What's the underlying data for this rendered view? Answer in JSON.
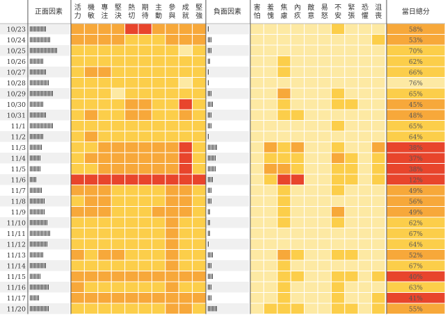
{
  "chart_data": {
    "type": "heatmap",
    "header": {
      "positive_title": "正面因素",
      "negative_title": "負面因素",
      "score_title": "當日總分"
    },
    "positive_labels": [
      "活力",
      "機敏",
      "專注",
      "堅決",
      "熱切",
      "期待",
      "主動",
      "參與",
      "成就",
      "堅強"
    ],
    "negative_labels": [
      "害怕",
      "羞愧",
      "焦慮",
      "內疚",
      "敵意",
      "易怒",
      "不安",
      "緊張",
      "恐懼",
      "沮喪"
    ],
    "dates": [
      "10/23",
      "10/24",
      "10/25",
      "10/26",
      "10/27",
      "10/28",
      "10/29",
      "10/30",
      "10/31",
      "11/1",
      "11/2",
      "11/3",
      "11/4",
      "11/5",
      "11/6",
      "11/7",
      "11/8",
      "11/9",
      "11/10",
      "11/11",
      "11/12",
      "11/13",
      "11/14",
      "11/15",
      "11/16",
      "11/17",
      "11/20"
    ],
    "positive_tally": [
      12,
      15,
      20,
      10,
      12,
      14,
      17,
      10,
      12,
      17,
      10,
      9,
      8,
      8,
      5,
      9,
      11,
      11,
      13,
      15,
      13,
      10,
      12,
      8,
      14,
      7,
      14
    ],
    "negative_tally": [
      1,
      3,
      3,
      2,
      1,
      1,
      3,
      4,
      3,
      3,
      1,
      7,
      6,
      6,
      4,
      3,
      3,
      2,
      2,
      2,
      1,
      4,
      3,
      4,
      3,
      3,
      7
    ],
    "scores": [
      "58%",
      "53%",
      "70%",
      "62%",
      "66%",
      "76%",
      "65%",
      "45%",
      "48%",
      "65%",
      "64%",
      "38%",
      "37%",
      "38%",
      "12%",
      "49%",
      "56%",
      "49%",
      "62%",
      "67%",
      "64%",
      "52%",
      "67%",
      "40%",
      "63%",
      "41%",
      "55%"
    ],
    "score_values": [
      58,
      53,
      70,
      62,
      66,
      76,
      65,
      45,
      48,
      65,
      64,
      38,
      37,
      38,
      12,
      49,
      56,
      49,
      62,
      67,
      64,
      52,
      67,
      40,
      63,
      41,
      55
    ],
    "positive_values": [
      [
        3,
        3,
        3,
        3,
        4,
        4,
        3,
        3,
        3,
        3
      ],
      [
        3,
        3,
        3,
        3,
        2,
        2,
        2,
        3,
        3,
        3
      ],
      [
        2,
        2,
        2,
        2,
        2,
        2,
        2,
        2,
        1,
        2
      ],
      [
        2,
        2,
        2,
        2,
        2,
        2,
        2,
        2,
        2,
        2
      ],
      [
        2,
        3,
        3,
        2,
        2,
        2,
        2,
        2,
        2,
        2
      ],
      [
        2,
        2,
        2,
        2,
        2,
        2,
        2,
        2,
        1,
        2
      ],
      [
        2,
        2,
        2,
        1,
        2,
        2,
        2,
        2,
        2,
        2
      ],
      [
        2,
        2,
        2,
        2,
        3,
        3,
        2,
        2,
        4,
        2
      ],
      [
        2,
        3,
        2,
        2,
        3,
        3,
        2,
        2,
        3,
        2
      ],
      [
        2,
        2,
        2,
        2,
        2,
        2,
        2,
        2,
        2,
        2
      ],
      [
        2,
        3,
        2,
        2,
        2,
        2,
        2,
        2,
        2,
        2
      ],
      [
        2,
        2,
        3,
        3,
        3,
        3,
        3,
        3,
        4,
        2
      ],
      [
        2,
        3,
        3,
        3,
        3,
        3,
        3,
        3,
        4,
        2
      ],
      [
        2,
        2,
        3,
        3,
        3,
        3,
        3,
        3,
        4,
        2
      ],
      [
        4,
        4,
        4,
        4,
        4,
        4,
        4,
        4,
        4,
        4
      ],
      [
        3,
        3,
        3,
        2,
        2,
        2,
        2,
        3,
        3,
        2
      ],
      [
        2,
        3,
        3,
        2,
        2,
        2,
        2,
        3,
        3,
        2
      ],
      [
        3,
        3,
        3,
        2,
        2,
        2,
        3,
        3,
        3,
        2
      ],
      [
        2,
        2,
        2,
        2,
        2,
        2,
        2,
        3,
        2,
        2
      ],
      [
        2,
        2,
        2,
        2,
        2,
        2,
        2,
        3,
        2,
        2
      ],
      [
        2,
        2,
        2,
        2,
        2,
        2,
        2,
        3,
        2,
        2
      ],
      [
        3,
        2,
        3,
        3,
        2,
        2,
        2,
        3,
        2,
        2
      ],
      [
        2,
        2,
        2,
        2,
        2,
        2,
        2,
        3,
        2,
        2
      ],
      [
        3,
        3,
        3,
        3,
        3,
        3,
        3,
        3,
        3,
        3
      ],
      [
        3,
        2,
        2,
        2,
        2,
        2,
        2,
        3,
        2,
        2
      ],
      [
        3,
        3,
        3,
        3,
        3,
        3,
        3,
        3,
        3,
        3
      ],
      [
        2,
        2,
        2,
        2,
        2,
        2,
        2,
        3,
        3,
        2
      ]
    ],
    "negative_values": [
      [
        1,
        1,
        1,
        1,
        1,
        1,
        2,
        1,
        1,
        1
      ],
      [
        1,
        1,
        1,
        1,
        1,
        1,
        1,
        1,
        1,
        2
      ],
      [
        1,
        1,
        1,
        1,
        1,
        1,
        1,
        1,
        1,
        1
      ],
      [
        1,
        1,
        2,
        1,
        1,
        1,
        1,
        1,
        1,
        1
      ],
      [
        1,
        1,
        2,
        1,
        1,
        1,
        1,
        1,
        1,
        1
      ],
      [
        1,
        1,
        1,
        1,
        1,
        1,
        1,
        1,
        1,
        1
      ],
      [
        1,
        1,
        3,
        1,
        1,
        1,
        2,
        1,
        1,
        1
      ],
      [
        1,
        1,
        2,
        1,
        1,
        1,
        2,
        2,
        1,
        1
      ],
      [
        1,
        1,
        2,
        2,
        1,
        1,
        1,
        1,
        1,
        1
      ],
      [
        1,
        1,
        1,
        1,
        1,
        1,
        2,
        1,
        1,
        1
      ],
      [
        1,
        1,
        1,
        1,
        1,
        1,
        1,
        1,
        1,
        1
      ],
      [
        1,
        3,
        2,
        3,
        1,
        1,
        2,
        1,
        1,
        3
      ],
      [
        1,
        2,
        2,
        2,
        1,
        1,
        3,
        2,
        1,
        2
      ],
      [
        1,
        3,
        3,
        2,
        1,
        1,
        2,
        2,
        1,
        2
      ],
      [
        1,
        2,
        4,
        4,
        1,
        1,
        2,
        2,
        1,
        2
      ],
      [
        1,
        1,
        2,
        1,
        1,
        1,
        2,
        1,
        1,
        1
      ],
      [
        1,
        1,
        2,
        1,
        1,
        1,
        1,
        1,
        1,
        1
      ],
      [
        1,
        1,
        2,
        1,
        1,
        1,
        3,
        1,
        1,
        1
      ],
      [
        1,
        1,
        2,
        1,
        1,
        1,
        2,
        1,
        1,
        1
      ],
      [
        1,
        1,
        1,
        1,
        1,
        1,
        1,
        1,
        1,
        1
      ],
      [
        1,
        1,
        1,
        1,
        1,
        1,
        1,
        1,
        1,
        1
      ],
      [
        1,
        1,
        3,
        2,
        1,
        1,
        2,
        2,
        1,
        1
      ],
      [
        1,
        1,
        2,
        1,
        1,
        1,
        1,
        1,
        1,
        1
      ],
      [
        1,
        1,
        2,
        2,
        1,
        1,
        2,
        2,
        1,
        2
      ],
      [
        1,
        1,
        2,
        1,
        1,
        1,
        2,
        1,
        1,
        1
      ],
      [
        1,
        1,
        2,
        1,
        1,
        1,
        2,
        1,
        1,
        2
      ],
      [
        1,
        2,
        2,
        2,
        1,
        1,
        2,
        2,
        1,
        2
      ]
    ],
    "colors": {
      "level_0": "#fff6c8",
      "level_1": "#fde9a3",
      "level_2": "#fcce4a",
      "level_3": "#f7a83a",
      "level_4": "#e8452c",
      "grid": "#ffffff",
      "row_alt": "#f0f0f0",
      "row_base": "#ffffff",
      "text": "#333333",
      "divider": "#555555"
    }
  }
}
